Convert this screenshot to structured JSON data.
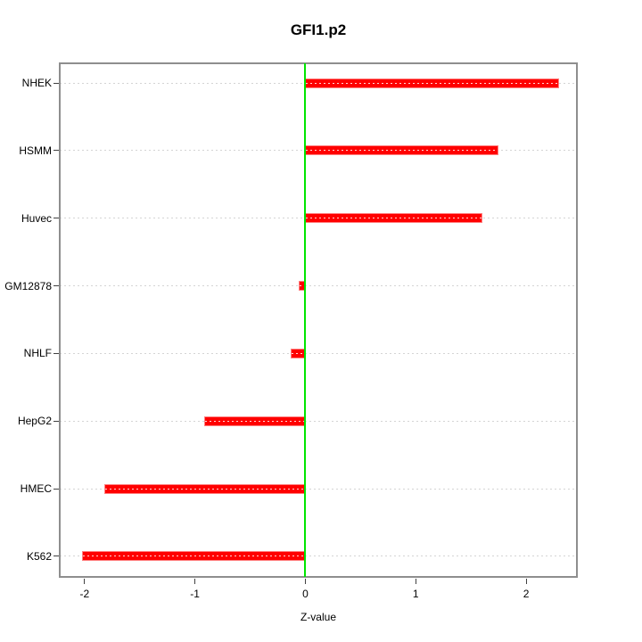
{
  "chart_data": {
    "type": "bar",
    "orientation": "horizontal",
    "title": "GFI1.p2",
    "xlabel": "Z-value",
    "categories": [
      "NHEK",
      "HSMM",
      "Huvec",
      "GM12878",
      "NHLF",
      "HepG2",
      "HMEC",
      "K562"
    ],
    "values": [
      2.3,
      1.75,
      1.6,
      -0.06,
      -0.13,
      -0.92,
      -1.82,
      -2.02
    ],
    "xlim": [
      -2.225,
      2.46
    ],
    "xticks": [
      -2,
      -1,
      0,
      1,
      2
    ],
    "xtick_labels": [
      "-2",
      "-1",
      "0",
      "1",
      "2"
    ],
    "refline_x": 0,
    "grid": "horizontal dotted line per category",
    "legend": "none",
    "colors": {
      "bar_fill": "#ff0000",
      "bar_border": "#ff8080",
      "bar_inner_dots": "#ffffff",
      "refline": "#00e500",
      "gridline": "#d4d4d4",
      "frame": "#8e8e8e",
      "axis_tick": "#404040",
      "text": "#000000",
      "background": "#ffffff"
    }
  }
}
